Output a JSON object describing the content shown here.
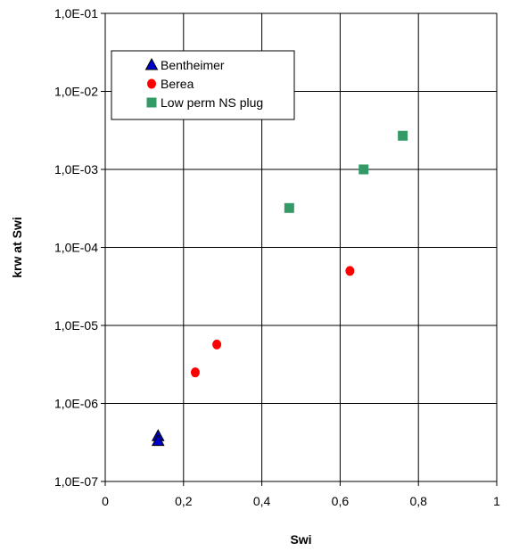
{
  "chart_data": {
    "type": "scatter",
    "xlabel": "Swi",
    "ylabel": "krw at Swi",
    "xlim": [
      0,
      1
    ],
    "ylim": [
      1e-07,
      0.1
    ],
    "yscale": "log",
    "grid": true,
    "legend_position": "top-left",
    "x_ticks": [
      "0",
      "0,2",
      "0,4",
      "0,6",
      "0,8",
      "1"
    ],
    "y_ticks": [
      "1,0E-07",
      "1,0E-06",
      "1,0E-05",
      "1,0E-04",
      "1,0E-03",
      "1,0E-02",
      "1,0E-01"
    ],
    "series": [
      {
        "name": "Bentheimer",
        "marker": "triangle",
        "color": "#0000cc",
        "points": [
          {
            "x": 0.135,
            "y": 3.8e-07
          },
          {
            "x": 0.135,
            "y": 3.3e-07
          }
        ]
      },
      {
        "name": "Berea",
        "marker": "circle",
        "color": "#ff0000",
        "points": [
          {
            "x": 0.23,
            "y": 2.5e-06
          },
          {
            "x": 0.285,
            "y": 5.7e-06
          },
          {
            "x": 0.625,
            "y": 5e-05
          }
        ]
      },
      {
        "name": "Low perm NS plug",
        "marker": "square",
        "color": "#339966",
        "points": [
          {
            "x": 0.47,
            "y": 0.00032
          },
          {
            "x": 0.66,
            "y": 0.001
          },
          {
            "x": 0.76,
            "y": 0.0027
          }
        ]
      }
    ]
  }
}
